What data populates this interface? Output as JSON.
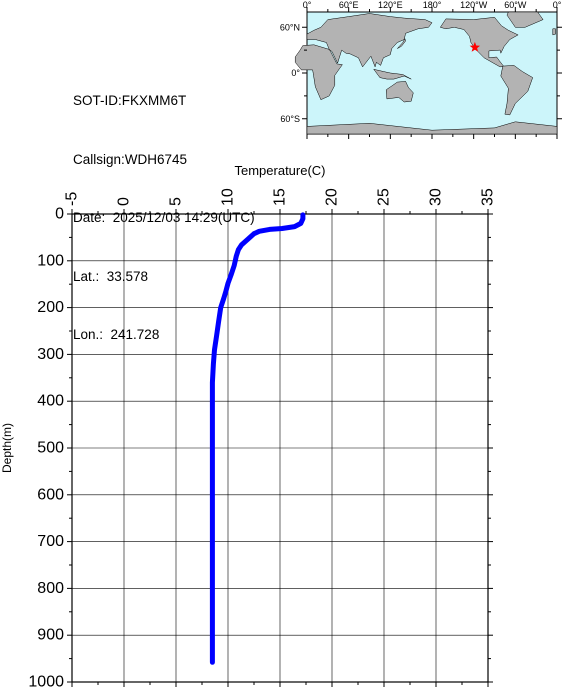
{
  "info": {
    "sot_id": "SOT-ID:FKXMM6T",
    "callsign": "Callsign:WDH6745",
    "date": "Date:  2025/12/03 14:29(UTC)",
    "lat": "Lat.:  33.578",
    "lon": "Lon.:  241.728"
  },
  "map": {
    "top_labels": [
      "0°",
      "60°E",
      "120°E",
      "180°",
      "120°W",
      "60°W",
      "0°"
    ],
    "left_labels": [
      "60°N",
      "0°",
      "60°S"
    ],
    "marker": {
      "lat": 33.578,
      "lon": 241.728,
      "color": "#ff0000"
    },
    "ocean_color": "#ccf5fa",
    "land_color": "#b3b3b3"
  },
  "chart_data": {
    "type": "line",
    "title": "",
    "xlabel": "Temperature(C)",
    "ylabel": "Depth(m)",
    "xlim": [
      -5,
      35
    ],
    "ylim": [
      1000,
      0
    ],
    "x_ticks": [
      "-5",
      "0",
      "5",
      "10",
      "15",
      "20",
      "25",
      "30",
      "35"
    ],
    "y_ticks": [
      "0",
      "100",
      "200",
      "300",
      "400",
      "500",
      "600",
      "700",
      "800",
      "900",
      "1000"
    ],
    "grid": true,
    "series": [
      {
        "color": "#0000ff",
        "points": [
          [
            17.2,
            2
          ],
          [
            17.2,
            10
          ],
          [
            17.0,
            20
          ],
          [
            16.4,
            27
          ],
          [
            15.2,
            31
          ],
          [
            14.0,
            33
          ],
          [
            13.0,
            37
          ],
          [
            12.5,
            42
          ],
          [
            12.2,
            48
          ],
          [
            11.8,
            56
          ],
          [
            11.3,
            66
          ],
          [
            11.0,
            76
          ],
          [
            10.8,
            90
          ],
          [
            10.6,
            110
          ],
          [
            10.3,
            130
          ],
          [
            10.0,
            148
          ],
          [
            9.8,
            165
          ],
          [
            9.6,
            180
          ],
          [
            9.3,
            200
          ],
          [
            9.1,
            230
          ],
          [
            8.9,
            260
          ],
          [
            8.7,
            290
          ],
          [
            8.6,
            320
          ],
          [
            8.5,
            360
          ],
          [
            8.5,
            450
          ],
          [
            8.5,
            550
          ],
          [
            8.5,
            650
          ],
          [
            8.5,
            750
          ],
          [
            8.5,
            850
          ],
          [
            8.5,
            958
          ]
        ]
      }
    ]
  }
}
